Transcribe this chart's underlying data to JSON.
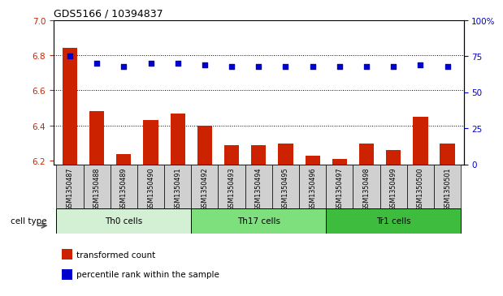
{
  "title": "GDS5166 / 10394837",
  "samples": [
    "GSM1350487",
    "GSM1350488",
    "GSM1350489",
    "GSM1350490",
    "GSM1350491",
    "GSM1350492",
    "GSM1350493",
    "GSM1350494",
    "GSM1350495",
    "GSM1350496",
    "GSM1350497",
    "GSM1350498",
    "GSM1350499",
    "GSM1350500",
    "GSM1350501"
  ],
  "transformed_count": [
    6.84,
    6.48,
    6.24,
    6.43,
    6.47,
    6.4,
    6.29,
    6.29,
    6.3,
    6.23,
    6.21,
    6.3,
    6.26,
    6.45,
    6.3
  ],
  "percentile_rank": [
    75,
    70,
    68,
    70,
    70,
    69,
    68,
    68,
    68,
    68,
    68,
    68,
    68,
    69,
    68
  ],
  "cell_types": [
    {
      "label": "Th0 cells",
      "start": 0,
      "end": 5,
      "color": "#d4f0d4"
    },
    {
      "label": "Th17 cells",
      "start": 5,
      "end": 10,
      "color": "#7de07d"
    },
    {
      "label": "Tr1 cells",
      "start": 10,
      "end": 15,
      "color": "#3dbc3d"
    }
  ],
  "ylim_left": [
    6.18,
    7.0
  ],
  "ylim_right": [
    0,
    100
  ],
  "yticks_left": [
    6.2,
    6.4,
    6.6,
    6.8,
    7.0
  ],
  "yticks_right": [
    0,
    25,
    50,
    75,
    100
  ],
  "ytick_labels_right": [
    "0",
    "25",
    "50",
    "75",
    "100%"
  ],
  "bar_color": "#cc2200",
  "dot_color": "#0000cc",
  "plot_bg_color": "#ffffff",
  "xtick_bg_color": "#d0d0d0",
  "legend_bar": "transformed count",
  "legend_dot": "percentile rank within the sample",
  "cell_type_label": "cell type",
  "grid_lines": [
    6.4,
    6.6,
    6.8
  ]
}
